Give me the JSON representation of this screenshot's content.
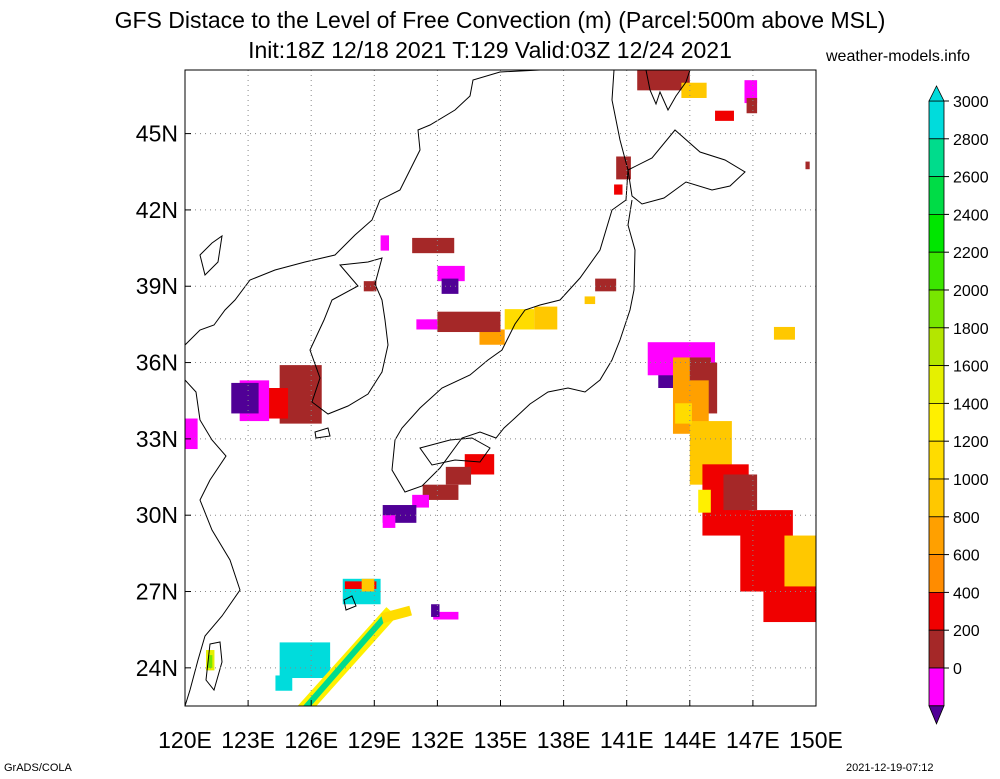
{
  "title": "GFS Distace to the Level of Free Convection (m) (Parcel:500m above MSL)",
  "subtitle": "Init:18Z 12/18 2021 T:129 Valid:03Z 12/24 2021",
  "site": "weather-models.info",
  "footer_left": "GrADS/COLA",
  "footer_right": "2021-12-19-07:12",
  "map": {
    "lon_range": [
      120,
      150
    ],
    "lat_range": [
      22.5,
      47.5
    ],
    "lon_ticks": [
      {
        "value": 120,
        "label": "120E"
      },
      {
        "value": 123,
        "label": "123E"
      },
      {
        "value": 126,
        "label": "126E"
      },
      {
        "value": 129,
        "label": "129E"
      },
      {
        "value": 132,
        "label": "132E"
      },
      {
        "value": 135,
        "label": "135E"
      },
      {
        "value": 138,
        "label": "138E"
      },
      {
        "value": 141,
        "label": "141E"
      },
      {
        "value": 144,
        "label": "144E"
      },
      {
        "value": 147,
        "label": "147E"
      },
      {
        "value": 150,
        "label": "150E"
      }
    ],
    "lat_ticks": [
      {
        "value": 24,
        "label": "24N"
      },
      {
        "value": 27,
        "label": "27N"
      },
      {
        "value": 30,
        "label": "30N"
      },
      {
        "value": 33,
        "label": "33N"
      },
      {
        "value": 36,
        "label": "36N"
      },
      {
        "value": 39,
        "label": "39N"
      },
      {
        "value": 42,
        "label": "42N"
      },
      {
        "value": 45,
        "label": "45N"
      }
    ],
    "grid": "dotted"
  },
  "colorbar": {
    "levels": [
      {
        "label": "3000",
        "color": "#00dcdc"
      },
      {
        "label": "2800",
        "color": "#00dc8c"
      },
      {
        "label": "2600",
        "color": "#00dc46"
      },
      {
        "label": "2400",
        "color": "#00e600"
      },
      {
        "label": "2200",
        "color": "#3ce600"
      },
      {
        "label": "2000",
        "color": "#78e600"
      },
      {
        "label": "1800",
        "color": "#b4e600"
      },
      {
        "label": "1600",
        "color": "#e6f000"
      },
      {
        "label": "1400",
        "color": "#fff000"
      },
      {
        "label": "1200",
        "color": "#ffdc00"
      },
      {
        "label": "1000",
        "color": "#ffc800"
      },
      {
        "label": "800",
        "color": "#ffa000"
      },
      {
        "label": "600",
        "color": "#ff8c00"
      },
      {
        "label": "400",
        "color": "#f00000"
      },
      {
        "label": "200",
        "color": "#a52828"
      },
      {
        "label": "0",
        "color": "#ff00ff"
      }
    ],
    "below_min_color": "#500096",
    "above_max_color": "#00dcdc"
  },
  "fields": {
    "cells": [
      [
        141.5,
        46.7,
        2.5,
        0.9,
        "#a52828"
      ],
      [
        143.6,
        46.4,
        1.2,
        0.6,
        "#ffc800"
      ],
      [
        145.2,
        45.5,
        0.9,
        0.4,
        "#f00000"
      ],
      [
        146.6,
        46.2,
        0.6,
        0.9,
        "#ff00ff"
      ],
      [
        146.7,
        45.8,
        0.5,
        0.6,
        "#a52828"
      ],
      [
        140.5,
        43.2,
        0.7,
        0.9,
        "#a52828"
      ],
      [
        140.4,
        42.6,
        0.4,
        0.4,
        "#f00000"
      ],
      [
        139.5,
        38.8,
        1.0,
        0.5,
        "#a52828"
      ],
      [
        139.0,
        38.3,
        0.5,
        0.3,
        "#ffc800"
      ],
      [
        136.6,
        37.3,
        1.1,
        0.9,
        "#ffc800"
      ],
      [
        135.2,
        37.3,
        1.4,
        0.8,
        "#ffdc00"
      ],
      [
        134.0,
        36.7,
        1.2,
        0.6,
        "#ffa000"
      ],
      [
        132.0,
        37.2,
        3.0,
        0.8,
        "#a52828"
      ],
      [
        131.0,
        37.3,
        1.0,
        0.4,
        "#ff00ff"
      ],
      [
        130.8,
        40.3,
        2.0,
        0.6,
        "#a52828"
      ],
      [
        132.0,
        39.2,
        1.3,
        0.6,
        "#ff00ff"
      ],
      [
        132.2,
        38.7,
        0.8,
        0.6,
        "#500096"
      ],
      [
        129.3,
        40.4,
        0.4,
        0.6,
        "#ff00ff"
      ],
      [
        128.5,
        38.8,
        0.6,
        0.4,
        "#a52828"
      ],
      [
        142.5,
        35.0,
        2.5,
        1.3,
        "#500096"
      ],
      [
        142.0,
        35.5,
        3.2,
        1.3,
        "#ff00ff"
      ],
      [
        143.3,
        34.0,
        2.0,
        2.0,
        "#a52828"
      ],
      [
        143.2,
        33.2,
        1.7,
        3.0,
        "#ffa000"
      ],
      [
        144.0,
        31.2,
        2.0,
        2.5,
        "#ffc800"
      ],
      [
        144.6,
        29.2,
        2.2,
        2.8,
        "#f00000"
      ],
      [
        146.4,
        27.0,
        2.5,
        3.2,
        "#f00000"
      ],
      [
        147.5,
        25.8,
        2.8,
        2.4,
        "#f00000"
      ],
      [
        148.5,
        27.2,
        1.7,
        2.0,
        "#ffc800"
      ],
      [
        145.6,
        30.2,
        1.6,
        1.4,
        "#a52828"
      ],
      [
        144.4,
        30.1,
        0.6,
        0.9,
        "#fff000"
      ],
      [
        143.3,
        33.6,
        0.8,
        0.8,
        "#ffdc00"
      ],
      [
        144.0,
        35.3,
        1.0,
        0.9,
        "#a52828"
      ],
      [
        124.5,
        33.6,
        2.0,
        2.3,
        "#a52828"
      ],
      [
        123.4,
        33.8,
        1.5,
        1.2,
        "#f00000"
      ],
      [
        122.6,
        33.7,
        1.4,
        1.6,
        "#ff00ff"
      ],
      [
        122.2,
        34.0,
        1.3,
        1.2,
        "#500096"
      ],
      [
        120.0,
        32.6,
        0.6,
        1.2,
        "#ff00ff"
      ],
      [
        133.3,
        31.6,
        1.4,
        0.8,
        "#f00000"
      ],
      [
        132.4,
        31.2,
        1.2,
        0.7,
        "#a52828"
      ],
      [
        131.3,
        30.6,
        1.7,
        0.6,
        "#a52828"
      ],
      [
        130.8,
        30.3,
        0.8,
        0.5,
        "#ff00ff"
      ],
      [
        129.4,
        29.7,
        1.6,
        0.7,
        "#500096"
      ],
      [
        129.4,
        29.5,
        0.6,
        0.5,
        "#ff00ff"
      ],
      [
        127.5,
        26.5,
        1.8,
        1.0,
        "#00dcdc"
      ],
      [
        127.6,
        27.1,
        1.5,
        0.3,
        "#f00000"
      ],
      [
        128.4,
        27.0,
        0.6,
        0.5,
        "#ffc800"
      ],
      [
        131.8,
        25.9,
        1.2,
        0.3,
        "#ff00ff"
      ],
      [
        131.7,
        26.0,
        0.4,
        0.5,
        "#500096"
      ],
      [
        124.5,
        23.6,
        2.4,
        1.4,
        "#00dcdc"
      ],
      [
        124.3,
        23.1,
        0.8,
        0.6,
        "#00dcdc"
      ],
      [
        121.0,
        23.9,
        0.4,
        0.8,
        "#e6f000"
      ],
      [
        121.1,
        24.0,
        0.2,
        0.5,
        "#78e600"
      ],
      [
        148.0,
        36.9,
        1.0,
        0.5,
        "#ffc800"
      ],
      [
        149.5,
        43.6,
        0.2,
        0.3,
        "#a52828"
      ]
    ],
    "belts": [
      [
        [
          129.6,
          26.0
        ],
        [
          125.8,
          22.5
        ],
        "#fff000",
        14
      ],
      [
        [
          129.5,
          26.0
        ],
        [
          125.8,
          22.5
        ],
        "#00dc8c",
        6
      ],
      [
        [
          130.5,
          26.2
        ],
        [
          129.6,
          26.0
        ],
        "#ffdc00",
        10
      ]
    ]
  }
}
